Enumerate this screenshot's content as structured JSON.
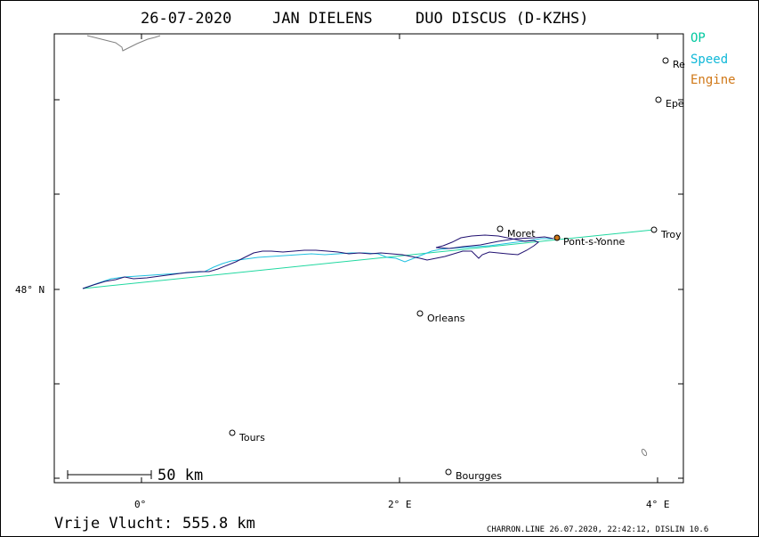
{
  "title": {
    "date": "26-07-2020",
    "pilot": "JAN DIELENS",
    "glider": "DUO DISCUS (D-KZHS)"
  },
  "legend": [
    {
      "label": "OP",
      "color": "#00c8a0"
    },
    {
      "label": "Speed",
      "color": "#10b8d8"
    },
    {
      "label": "Engine",
      "color": "#d07818"
    }
  ],
  "colors": {
    "track": "#201070",
    "op_line": "#20d8a0",
    "speed_track": "#20c0e0",
    "engine_marker": "#d07818",
    "coastline": "#808080"
  },
  "axes": {
    "x_ticks": [
      {
        "value": 0,
        "label": "0°"
      },
      {
        "value": 2,
        "label": "2° E"
      },
      {
        "value": 4,
        "label": "4° E"
      }
    ],
    "y_ticks": [
      {
        "value": 48,
        "label": "48° N"
      }
    ]
  },
  "towns": [
    {
      "name": "Re",
      "lon": 4.05,
      "lat": 49.25
    },
    {
      "name": "Epe",
      "lon": 4.0,
      "lat": 49.04
    },
    {
      "name": "Troy",
      "lon": 3.98,
      "lat": 48.31
    },
    {
      "name": "Moret",
      "lon": 2.78,
      "lat": 48.32
    },
    {
      "name": "Pont-s-Yonne",
      "lon": 3.22,
      "lat": 48.27
    },
    {
      "name": "Orleans",
      "lon": 2.15,
      "lat": 47.87
    },
    {
      "name": "Tours",
      "lon": 0.69,
      "lat": 47.18
    },
    {
      "name": "Bourgges",
      "lon": 2.37,
      "lat": 46.97
    }
  ],
  "scale_bar": {
    "label": "50 km"
  },
  "distance": {
    "label": "Vrije Vlucht:",
    "value": "555.8 km"
  },
  "credit": "CHARRON.LINE 26.07.2020, 22:42:12, DISLIN 10.6"
}
